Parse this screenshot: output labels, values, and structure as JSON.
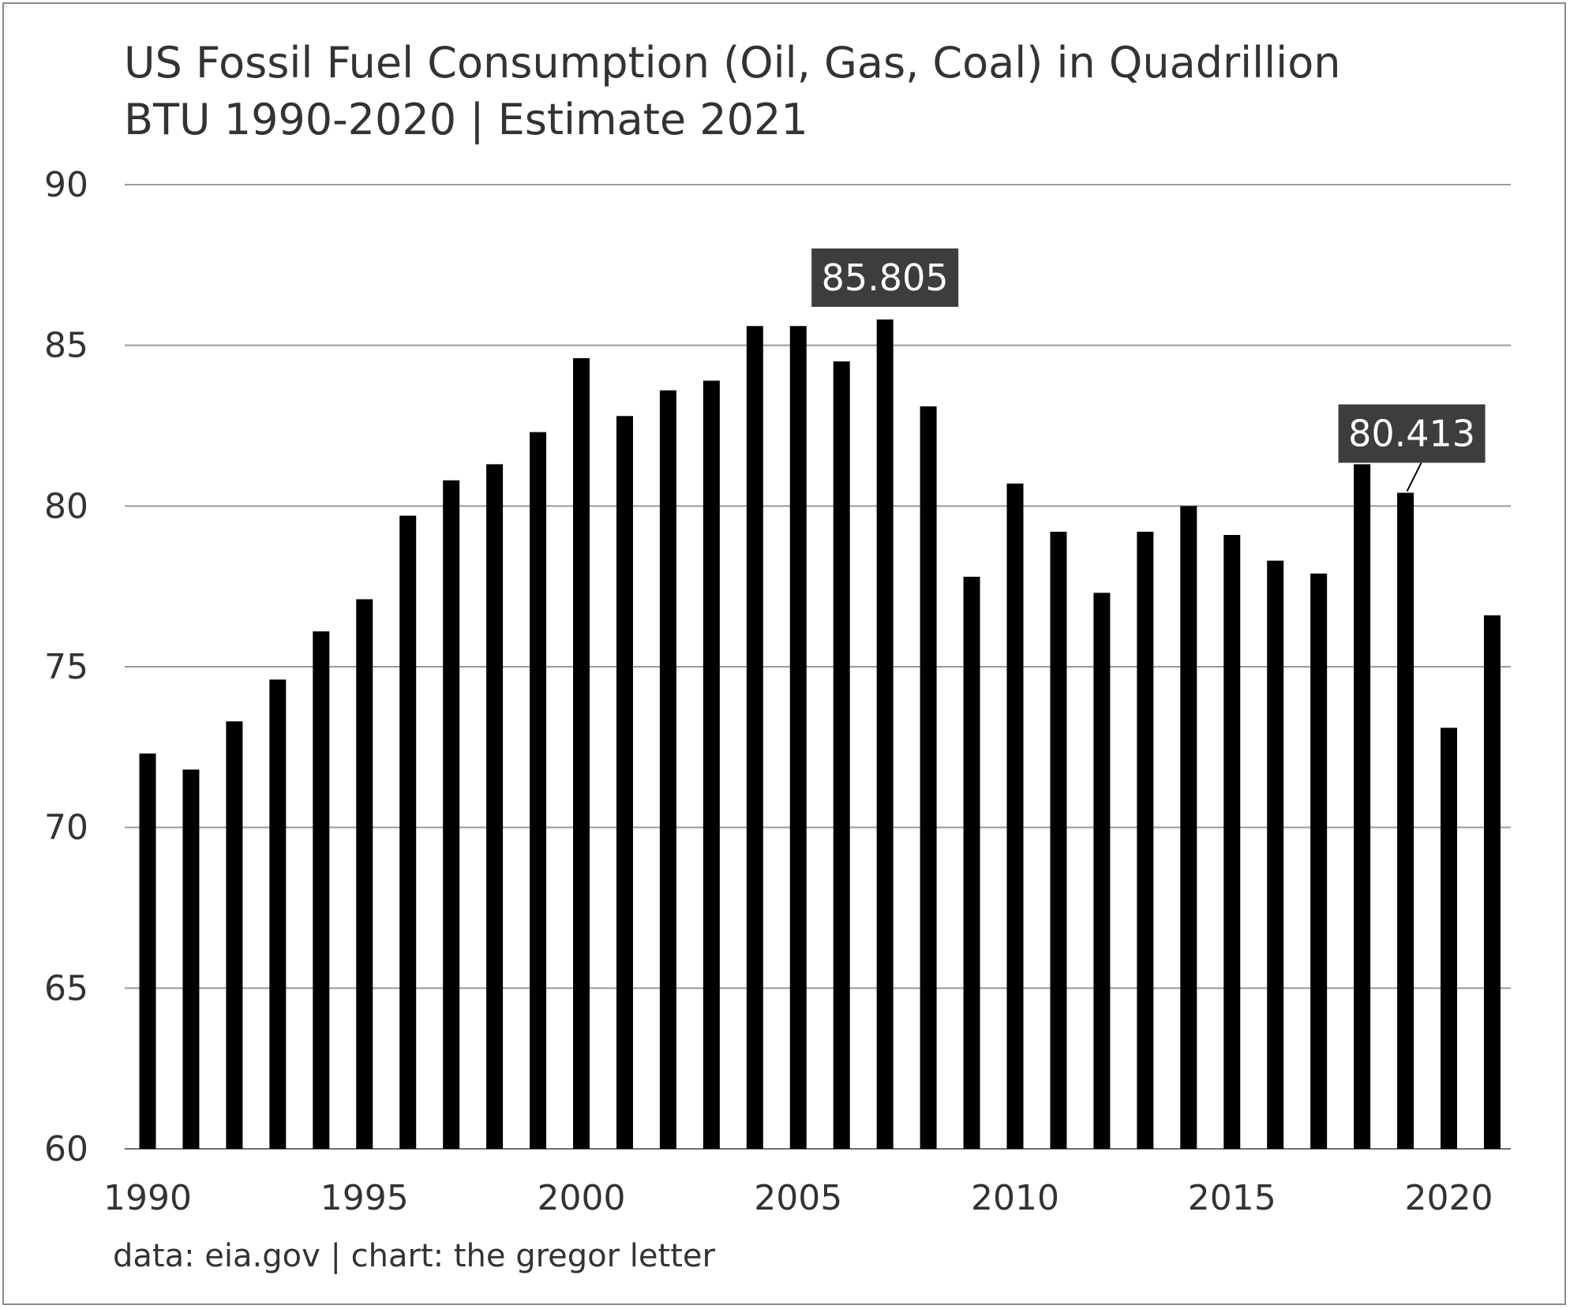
{
  "chart_data": {
    "type": "bar",
    "title_lines": [
      "US Fossil Fuel Consumption (Oil, Gas, Coal) in Quadrillion",
      "BTU 1990-2020 | Estimate 2021"
    ],
    "source": "data: eia.gov | chart: the gregor letter",
    "categories": [
      1990,
      1991,
      1992,
      1993,
      1994,
      1995,
      1996,
      1997,
      1998,
      1999,
      2000,
      2001,
      2002,
      2003,
      2004,
      2005,
      2006,
      2007,
      2008,
      2009,
      2010,
      2011,
      2012,
      2013,
      2014,
      2015,
      2016,
      2017,
      2018,
      2019,
      2020,
      2021
    ],
    "values": [
      72.3,
      71.8,
      73.3,
      74.6,
      76.1,
      77.1,
      79.7,
      80.8,
      81.3,
      82.3,
      84.6,
      82.8,
      83.6,
      83.9,
      85.6,
      85.6,
      84.5,
      85.805,
      83.1,
      77.8,
      80.7,
      79.2,
      77.3,
      79.2,
      80.0,
      79.1,
      78.3,
      77.9,
      81.3,
      80.413,
      73.1,
      76.6
    ],
    "ylim": [
      60,
      90
    ],
    "yticks": [
      "90",
      "85",
      "80",
      "75",
      "70",
      "65",
      "60"
    ],
    "xticks": [
      "1990",
      "1995",
      "2000",
      "2005",
      "2010",
      "2015",
      "2020"
    ],
    "grid": true,
    "bar_color": "#000000",
    "grid_color": "#9a9a9a",
    "annotations": [
      {
        "year": 2007,
        "label": "85.805"
      },
      {
        "year": 2019,
        "label": "80.413"
      }
    ],
    "callout_color": "#3d3d3d"
  }
}
